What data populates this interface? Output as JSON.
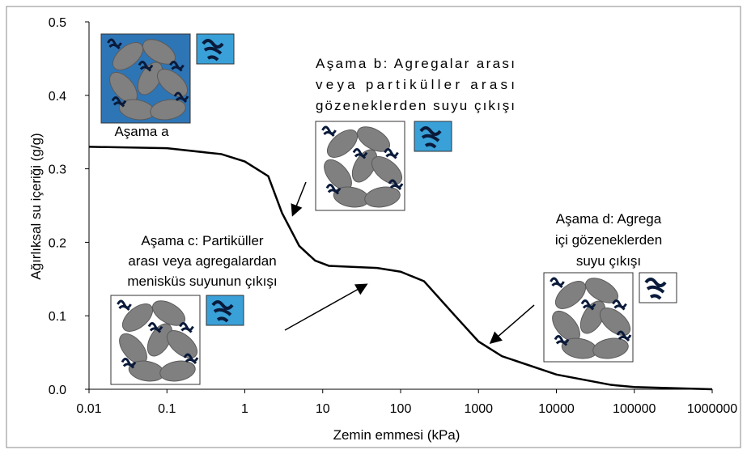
{
  "chart_data": {
    "type": "line",
    "x_label": "Zemin emmesi (kPa)",
    "y_label": "Ağırlıksal su içeriği (g/g)",
    "log_x": true,
    "xlim": [
      0.01,
      1000000
    ],
    "xticks": [
      0.01,
      0.1,
      1,
      10,
      100,
      1000,
      10000,
      100000,
      1000000
    ],
    "ylim": [
      0,
      0.5
    ],
    "yticks": [
      {
        "value": 0,
        "label": "0.0"
      },
      0.1,
      0.2,
      0.3,
      0.4,
      0.5
    ],
    "series": [
      {
        "color": "#000000",
        "x": [
          0.01,
          0.1,
          0.5,
          1,
          2,
          3,
          5,
          8,
          12,
          50,
          100,
          200,
          500,
          1000,
          2000,
          10000,
          50000,
          100000,
          1000000
        ],
        "values": [
          0.33,
          0.328,
          0.32,
          0.31,
          0.29,
          0.24,
          0.195,
          0.175,
          0.168,
          0.165,
          0.16,
          0.147,
          0.1,
          0.065,
          0.045,
          0.02,
          0.006,
          0.003,
          0
        ]
      }
    ],
    "annotations": [
      [
        "Aşama a"
      ],
      [
        "Aşama b: Agregalar arası",
        "veya partiküller arası",
        "gözeneklerden suyu çıkışı"
      ],
      [
        "Aşama c: Partiküller",
        "arası veya agregalardan",
        "menisküs suyunun çıkışı"
      ],
      [
        "Aşama d: Agrega",
        "içi gözeneklerden",
        "suyu çıkışı"
      ]
    ]
  }
}
